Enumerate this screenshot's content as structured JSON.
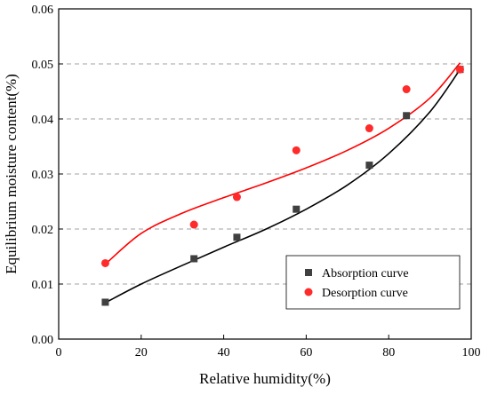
{
  "chart_data": {
    "type": "scatter",
    "xlabel": "Relative humidity(%)",
    "ylabel": "Equilibrium moisture content(%)",
    "xlim": [
      0,
      100
    ],
    "ylim": [
      0,
      0.06
    ],
    "xticks": [
      "0",
      "20",
      "40",
      "60",
      "80",
      "100"
    ],
    "yticks": [
      "0.00",
      "0.01",
      "0.02",
      "0.03",
      "0.04",
      "0.05",
      "0.06"
    ],
    "grid": "horizontal dashed",
    "legend_position": "bottom-right",
    "series": [
      {
        "name": "Absorption curve",
        "marker": "square",
        "color": "#404040",
        "fit_color": "#000000",
        "x": [
          11.3,
          32.8,
          43.2,
          57.6,
          75.3,
          84.3,
          97.3
        ],
        "y": [
          0.0067,
          0.0146,
          0.0185,
          0.0236,
          0.0316,
          0.0406,
          0.049
        ],
        "fit_x": [
          11.3,
          20,
          30,
          40,
          50,
          60,
          70,
          80,
          90,
          97.3
        ],
        "fit_y": [
          0.0066,
          0.01,
          0.0134,
          0.0167,
          0.0199,
          0.0236,
          0.028,
          0.0337,
          0.0413,
          0.049
        ]
      },
      {
        "name": "Desorption curve",
        "marker": "circle",
        "color": "#ff2a2a",
        "fit_color": "#ff0000",
        "x": [
          11.3,
          32.8,
          43.2,
          57.6,
          75.3,
          84.3,
          97.3
        ],
        "y": [
          0.0138,
          0.0208,
          0.0258,
          0.0343,
          0.0383,
          0.0454,
          0.049
        ],
        "fit_x": [
          11.3,
          20,
          30,
          40,
          50,
          60,
          70,
          80,
          90,
          97.3
        ],
        "fit_y": [
          0.0136,
          0.0192,
          0.0229,
          0.0257,
          0.0283,
          0.0311,
          0.0343,
          0.0383,
          0.0438,
          0.0502
        ]
      }
    ]
  }
}
